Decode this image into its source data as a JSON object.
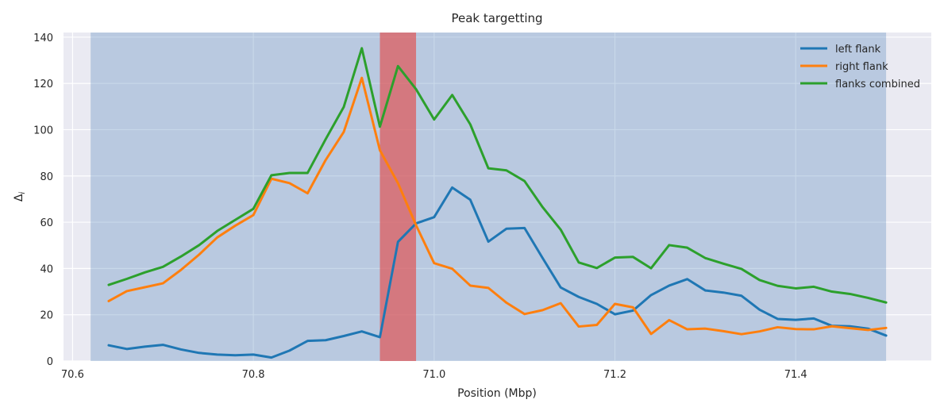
{
  "chart_data": {
    "type": "line",
    "title": "Peak targetting",
    "xlabel": "Position (Mbp)",
    "ylabel": "Δ",
    "ylabel_sub": "i",
    "xlim": [
      70.59,
      71.55
    ],
    "ylim": [
      0,
      142
    ],
    "xticks": [
      70.6,
      70.8,
      71.0,
      71.2,
      71.4
    ],
    "xtick_labels": [
      "70.6",
      "70.8",
      "71.0",
      "71.2",
      "71.4"
    ],
    "yticks": [
      0,
      20,
      40,
      60,
      80,
      100,
      120,
      140
    ],
    "ytick_labels": [
      "0",
      "20",
      "40",
      "60",
      "80",
      "100",
      "120",
      "140"
    ],
    "grid": true,
    "legend_position": "top-right",
    "spans": [
      {
        "x0": 70.62,
        "x1": 71.5,
        "color": "#4a7fb5",
        "opacity": 0.3
      },
      {
        "x0": 70.94,
        "x1": 70.98,
        "color": "#e05555",
        "opacity": 0.7
      }
    ],
    "x": [
      70.64,
      70.66,
      70.68,
      70.7,
      70.72,
      70.74,
      70.76,
      70.78,
      70.8,
      70.82,
      70.84,
      70.86,
      70.88,
      70.9,
      70.92,
      70.94,
      70.96,
      70.98,
      71.0,
      71.02,
      71.04,
      71.06,
      71.08,
      71.1,
      71.12,
      71.14,
      71.16,
      71.18,
      71.2,
      71.22,
      71.24,
      71.26,
      71.28,
      71.3,
      71.32,
      71.34,
      71.36,
      71.38,
      71.4,
      71.42,
      71.44,
      71.46,
      71.48,
      71.5
    ],
    "series": [
      {
        "name": "left flank",
        "color": "#1f77b4",
        "values": [
          6.8,
          5.2,
          6.2,
          7.0,
          5.0,
          3.5,
          2.8,
          2.5,
          2.8,
          1.5,
          4.5,
          8.7,
          9.0,
          10.8,
          12.8,
          10.3,
          51.5,
          59.5,
          62.2,
          75.0,
          69.7,
          51.6,
          57.2,
          57.5,
          44.5,
          31.8,
          27.7,
          24.7,
          20.2,
          21.8,
          28.5,
          32.6,
          35.4,
          30.5,
          29.6,
          28.2,
          22.2,
          18.2,
          17.8,
          18.4,
          15.2,
          15.0,
          14.0,
          11.0
        ]
      },
      {
        "name": "right flank",
        "color": "#ff7f0e",
        "values": [
          25.9,
          30.2,
          31.9,
          33.6,
          39.4,
          46.0,
          53.4,
          58.5,
          63.1,
          78.8,
          76.9,
          72.5,
          86.9,
          99.0,
          122.4,
          91.1,
          76.9,
          58.7,
          42.3,
          39.9,
          32.6,
          31.6,
          25.2,
          20.3,
          22.0,
          25.0,
          14.9,
          15.6,
          24.7,
          23.2,
          11.7,
          17.7,
          13.7,
          14.0,
          12.9,
          11.6,
          12.8,
          14.6,
          13.8,
          13.7,
          15.0,
          14.2,
          13.4,
          14.3
        ]
      },
      {
        "name": "flanks combined",
        "color": "#2ca02c",
        "values": [
          32.9,
          35.5,
          38.3,
          40.7,
          45.2,
          50.1,
          56.2,
          61.0,
          65.8,
          80.3,
          81.3,
          81.3,
          95.9,
          109.8,
          135.2,
          101.3,
          127.5,
          117.5,
          104.4,
          115.0,
          102.3,
          83.3,
          82.4,
          77.8,
          66.5,
          56.8,
          42.6,
          40.2,
          44.7,
          45.0,
          40.1,
          50.1,
          49.0,
          44.5,
          42.1,
          39.8,
          35.0,
          32.5,
          31.4,
          32.1,
          30.0,
          29.0,
          27.3,
          25.3
        ]
      }
    ]
  }
}
